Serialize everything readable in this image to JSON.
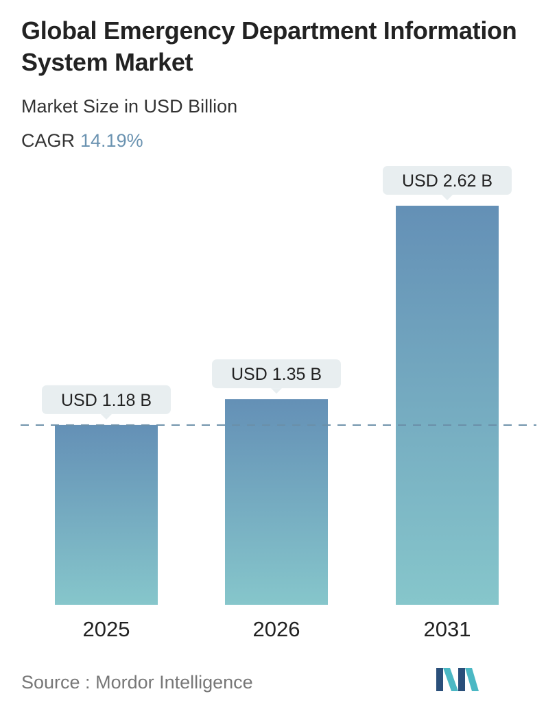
{
  "header": {
    "title": "Global Emergency Department Information System Market",
    "subtitle": "Market Size in USD Billion",
    "cagr_label": "CAGR",
    "cagr_value": "14.19%"
  },
  "footer": {
    "source_label": "Source :",
    "source_name": "Mordor Intelligence",
    "logo_icon": "mordor-intelligence-logo-icon"
  },
  "colors": {
    "bar_top": "#6490b6",
    "bar_bottom": "#86c6cb",
    "label_bg": "#e8eef0",
    "dashed_line": "#6a8fa8",
    "cagr_value": "#6b93b1",
    "logo_dark": "#2a4f7a",
    "logo_light": "#4bb8c4"
  },
  "chart_data": {
    "type": "bar",
    "categories": [
      "2025",
      "2026",
      "2031"
    ],
    "values": [
      1.18,
      1.35,
      2.62
    ],
    "value_labels": [
      "USD 1.18 B",
      "USD 1.35 B",
      "USD 2.62 B"
    ],
    "ylim": [
      0,
      2.62
    ],
    "reference_line_value": 1.18,
    "grid": false
  }
}
